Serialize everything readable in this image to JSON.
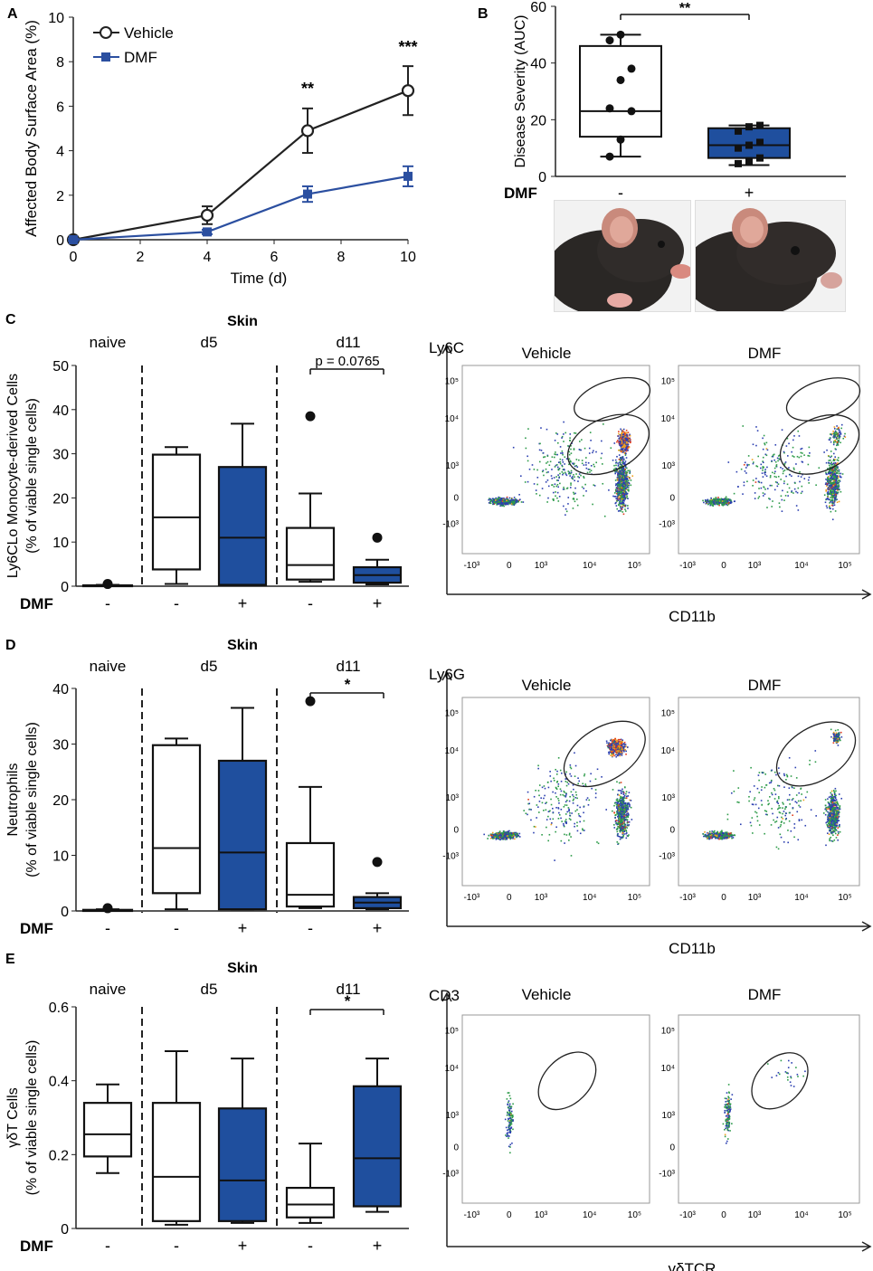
{
  "colors": {
    "vehicle": "#222222",
    "dmf": "#2b4fa0",
    "box_dmf_fill": "#1f4f9e",
    "box_vehicle_fill": "#ffffff"
  },
  "chart_data": [
    {
      "panel": "A",
      "type": "line",
      "title": "",
      "xlabel": "Time (d)",
      "ylabel": "Affected Body Surface Area (%)",
      "xlim": [
        0,
        10
      ],
      "ylim": [
        0,
        10
      ],
      "xticks": [
        0,
        2,
        4,
        6,
        8,
        10
      ],
      "yticks": [
        0,
        2,
        4,
        6,
        8,
        10
      ],
      "series": [
        {
          "name": "Vehicle",
          "x": [
            0,
            4,
            7,
            10
          ],
          "values": [
            0,
            1.1,
            4.9,
            6.7
          ],
          "err": [
            0.1,
            0.4,
            1.0,
            1.1
          ]
        },
        {
          "name": "DMF",
          "x": [
            0,
            4,
            7,
            10
          ],
          "values": [
            0,
            0.35,
            2.05,
            2.85
          ],
          "err": [
            0.05,
            0.1,
            0.35,
            0.45
          ]
        }
      ],
      "annotations": [
        {
          "x": 7,
          "text": "**"
        },
        {
          "x": 10,
          "text": "***"
        }
      ],
      "legend": "top-left"
    },
    {
      "panel": "B",
      "type": "box",
      "ylabel": "Disease Severity (AUC)",
      "ylim": [
        0,
        60
      ],
      "yticks": [
        0,
        20,
        40,
        60
      ],
      "group_label": "DMF",
      "groups": [
        {
          "label": "-",
          "whisker_low": 7,
          "q1": 14,
          "median": 23,
          "q3": 46,
          "whisker_high": 50,
          "points": [
            7,
            13,
            23,
            24,
            34,
            38,
            48,
            50
          ]
        },
        {
          "label": "+",
          "whisker_low": 4,
          "q1": 6.5,
          "median": 11,
          "q3": 17,
          "whisker_high": 18,
          "points": [
            4.5,
            5.5,
            6.5,
            10,
            11,
            12,
            16,
            17.5,
            18
          ]
        }
      ],
      "significance": "**"
    },
    {
      "panel": "C",
      "type": "box",
      "title": "Skin",
      "ylabel_line1": "Ly6CLo Monocyte-derived Cells",
      "ylabel_line2": "(% of viable single cells)",
      "ylim": [
        0,
        50
      ],
      "yticks": [
        0,
        10,
        20,
        30,
        40,
        50
      ],
      "group_label": "DMF",
      "sections": [
        "naive",
        "d5",
        "d11"
      ],
      "significance": "p = 0.0765",
      "groups": [
        {
          "label": "-",
          "fill": "vehicle",
          "whisker_low": 0,
          "q1": 0,
          "median": 0.1,
          "q3": 0.2,
          "whisker_high": 0.3,
          "outliers": [
            0.5
          ]
        },
        {
          "label": "-",
          "fill": "vehicle",
          "whisker_low": 0.5,
          "q1": 3.8,
          "median": 15.6,
          "q3": 29.8,
          "whisker_high": 31.5,
          "outliers": []
        },
        {
          "label": "+",
          "fill": "dmf",
          "whisker_low": 0.3,
          "q1": 0.3,
          "median": 11,
          "q3": 27,
          "whisker_high": 36.8,
          "outliers": []
        },
        {
          "label": "-",
          "fill": "vehicle",
          "whisker_low": 1,
          "q1": 1.5,
          "median": 4.8,
          "q3": 13.2,
          "whisker_high": 21,
          "outliers": [
            38.5
          ]
        },
        {
          "label": "+",
          "fill": "dmf",
          "whisker_low": 0.4,
          "q1": 0.8,
          "median": 2.5,
          "q3": 4.3,
          "whisker_high": 6,
          "outliers": [
            11
          ]
        }
      ],
      "flow": {
        "y_axis": "Ly6C",
        "x_axis": "CD11b",
        "plots": [
          "Vehicle",
          "DMF"
        ]
      }
    },
    {
      "panel": "D",
      "type": "box",
      "title": "Skin",
      "ylabel_line1": "Neutrophils",
      "ylabel_line2": "(% of viable single cells)",
      "ylim": [
        0,
        40
      ],
      "yticks": [
        0,
        10,
        20,
        30,
        40
      ],
      "group_label": "DMF",
      "sections": [
        "naive",
        "d5",
        "d11"
      ],
      "significance": "*",
      "groups": [
        {
          "label": "-",
          "fill": "vehicle",
          "whisker_low": 0,
          "q1": 0,
          "median": 0.1,
          "q3": 0.2,
          "whisker_high": 0.3,
          "outliers": [
            0.5
          ]
        },
        {
          "label": "-",
          "fill": "vehicle",
          "whisker_low": 0.3,
          "q1": 3.2,
          "median": 11.3,
          "q3": 29.8,
          "whisker_high": 31,
          "outliers": []
        },
        {
          "label": "+",
          "fill": "dmf",
          "whisker_low": 0.3,
          "q1": 0.3,
          "median": 10.5,
          "q3": 27,
          "whisker_high": 36.5,
          "outliers": []
        },
        {
          "label": "-",
          "fill": "vehicle",
          "whisker_low": 0.5,
          "q1": 0.8,
          "median": 2.9,
          "q3": 12.2,
          "whisker_high": 22.3,
          "outliers": [
            37.7
          ]
        },
        {
          "label": "+",
          "fill": "dmf",
          "whisker_low": 0.3,
          "q1": 0.5,
          "median": 1.5,
          "q3": 2.5,
          "whisker_high": 3.2,
          "outliers": [
            8.8
          ]
        }
      ],
      "flow": {
        "y_axis": "Ly6G",
        "x_axis": "CD11b",
        "plots": [
          "Vehicle",
          "DMF"
        ]
      }
    },
    {
      "panel": "E",
      "type": "box",
      "title": "Skin",
      "ylabel_line1": "γδT Cells",
      "ylabel_line2": "(% of viable single cells)",
      "ylim": [
        0,
        0.6
      ],
      "yticks": [
        0,
        0.2,
        0.4,
        0.6
      ],
      "group_label": "DMF",
      "sections": [
        "naive",
        "d5",
        "d11"
      ],
      "significance": "*",
      "groups": [
        {
          "label": "-",
          "fill": "vehicle",
          "whisker_low": 0.15,
          "q1": 0.195,
          "median": 0.255,
          "q3": 0.34,
          "whisker_high": 0.39,
          "outliers": []
        },
        {
          "label": "-",
          "fill": "vehicle",
          "whisker_low": 0.01,
          "q1": 0.02,
          "median": 0.14,
          "q3": 0.34,
          "whisker_high": 0.48,
          "outliers": []
        },
        {
          "label": "+",
          "fill": "dmf",
          "whisker_low": 0.015,
          "q1": 0.02,
          "median": 0.13,
          "q3": 0.325,
          "whisker_high": 0.46,
          "outliers": []
        },
        {
          "label": "-",
          "fill": "vehicle",
          "whisker_low": 0.015,
          "q1": 0.03,
          "median": 0.065,
          "q3": 0.11,
          "whisker_high": 0.23,
          "outliers": []
        },
        {
          "label": "+",
          "fill": "dmf",
          "whisker_low": 0.045,
          "q1": 0.06,
          "median": 0.19,
          "q3": 0.385,
          "whisker_high": 0.46,
          "outliers": []
        }
      ],
      "flow": {
        "y_axis": "CD3",
        "x_axis": "γδTCR",
        "plots": [
          "Vehicle",
          "DMF"
        ]
      }
    }
  ],
  "flow_axis_ticks": {
    "x": [
      "-10³",
      "0",
      "10³",
      "10⁴",
      "10⁵"
    ],
    "y": [
      "10⁵",
      "10⁴",
      "10³",
      "0",
      "-10³"
    ]
  },
  "photos": [
    "mouse-vehicle-photo",
    "mouse-dmf-photo"
  ]
}
